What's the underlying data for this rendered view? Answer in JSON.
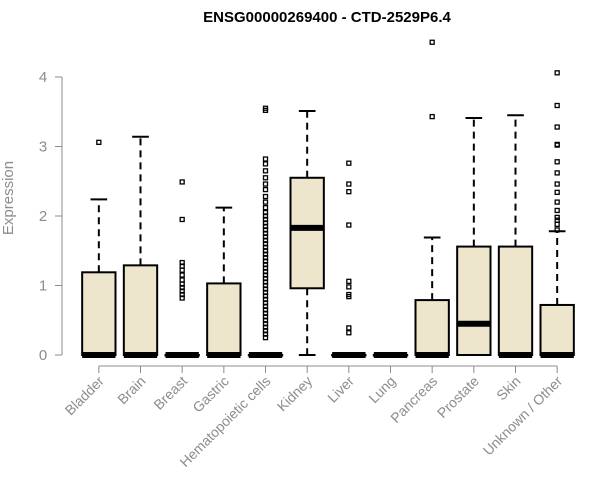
{
  "chart_data": {
    "type": "boxplot",
    "title": "ENSG00000269400 - CTD-2529P6.4",
    "xlabel": "",
    "ylabel": "Expression",
    "ylim": [
      0,
      4.5
    ],
    "yticks": [
      0,
      1,
      2,
      3,
      4
    ],
    "colors": {
      "box_fill": "#ede6cc",
      "stroke": "#000000",
      "axis_text": "#8c8c8c"
    },
    "categories": [
      "Bladder",
      "Brain",
      "Breast",
      "Gastric",
      "Hematopoietic cells",
      "Kidney",
      "Liver",
      "Lung",
      "Pancreas",
      "Prostate",
      "Skin",
      "Unknown / Other"
    ],
    "boxes": [
      {
        "name": "Bladder",
        "q1": 0,
        "median": 0,
        "q3": 1.19,
        "whisker_low": 0,
        "whisker_high": 2.24,
        "outliers": [
          3.06
        ]
      },
      {
        "name": "Brain",
        "q1": 0,
        "median": 0,
        "q3": 1.29,
        "whisker_low": 0,
        "whisker_high": 3.14,
        "outliers": []
      },
      {
        "name": "Breast",
        "q1": 0,
        "median": 0,
        "q3": 0,
        "whisker_low": 0,
        "whisker_high": 0,
        "outliers": [
          2.49,
          1.95,
          1.33,
          1.28,
          1.22,
          1.15,
          1.08,
          1.02,
          0.97,
          0.92,
          0.87,
          0.82
        ]
      },
      {
        "name": "Gastric",
        "q1": 0,
        "median": 0,
        "q3": 1.03,
        "whisker_low": 0,
        "whisker_high": 2.12,
        "outliers": []
      },
      {
        "name": "Hematopoietic cells",
        "q1": 0,
        "median": 0,
        "q3": 0,
        "whisker_low": 0,
        "whisker_high": 0,
        "outliers": [
          3.55,
          3.52,
          2.82,
          2.75,
          2.65,
          2.55,
          2.46,
          2.38,
          2.28,
          2.2,
          2.12,
          2.05,
          2.0,
          1.95,
          1.9,
          1.85,
          1.8,
          1.75,
          1.7,
          1.65,
          1.6,
          1.55,
          1.5,
          1.45,
          1.4,
          1.35,
          1.3,
          1.25,
          1.2,
          1.15,
          1.1,
          1.05,
          1.0,
          0.95,
          0.9,
          0.85,
          0.8,
          0.75,
          0.7,
          0.65,
          0.6,
          0.55,
          0.5,
          0.45,
          0.4,
          0.35,
          0.3,
          0.25
        ]
      },
      {
        "name": "Kidney",
        "q1": 0.96,
        "median": 1.83,
        "q3": 2.55,
        "whisker_low": 0,
        "whisker_high": 3.51,
        "outliers": []
      },
      {
        "name": "Liver",
        "q1": 0,
        "median": 0,
        "q3": 0,
        "whisker_low": 0,
        "whisker_high": 0,
        "outliers": [
          2.76,
          2.46,
          2.35,
          1.87,
          1.06,
          0.98,
          0.87,
          0.84,
          0.39,
          0.32
        ]
      },
      {
        "name": "Lung",
        "q1": 0,
        "median": 0,
        "q3": 0,
        "whisker_low": 0,
        "whisker_high": 0,
        "outliers": []
      },
      {
        "name": "Pancreas",
        "q1": 0,
        "median": 0,
        "q3": 0.79,
        "whisker_low": 0,
        "whisker_high": 1.69,
        "outliers": [
          4.5,
          3.43
        ]
      },
      {
        "name": "Prostate",
        "q1": 0,
        "median": 0.45,
        "q3": 1.56,
        "whisker_low": 0,
        "whisker_high": 3.41,
        "outliers": []
      },
      {
        "name": "Skin",
        "q1": 0,
        "median": 0,
        "q3": 1.56,
        "whisker_low": 0,
        "whisker_high": 3.45,
        "outliers": []
      },
      {
        "name": "Unknown / Other",
        "q1": 0,
        "median": 0,
        "q3": 0.72,
        "whisker_low": 0,
        "whisker_high": 1.78,
        "outliers": [
          4.06,
          3.59,
          3.28,
          3.03,
          3.02,
          2.78,
          2.62,
          2.46,
          2.34,
          2.2,
          2.08,
          1.98,
          1.94,
          1.88,
          1.8
        ]
      }
    ]
  }
}
